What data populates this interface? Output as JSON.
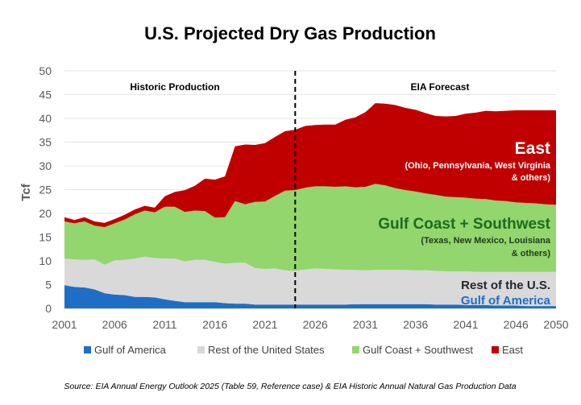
{
  "chart_data": {
    "type": "area",
    "title": "U.S. Projected Dry Gas Production",
    "ylabel": "Tcf",
    "xlabel": "",
    "ylim": [
      0,
      50
    ],
    "yticks": [
      0,
      5,
      10,
      15,
      20,
      25,
      30,
      35,
      40,
      45,
      50
    ],
    "xlim": [
      2001,
      2050
    ],
    "xticks": [
      2001,
      2006,
      2011,
      2016,
      2021,
      2026,
      2031,
      2036,
      2041,
      2046,
      2050
    ],
    "x": [
      2001,
      2002,
      2003,
      2004,
      2005,
      2006,
      2007,
      2008,
      2009,
      2010,
      2011,
      2012,
      2013,
      2014,
      2015,
      2016,
      2017,
      2018,
      2019,
      2020,
      2021,
      2022,
      2023,
      2024,
      2025,
      2026,
      2027,
      2028,
      2029,
      2030,
      2031,
      2032,
      2033,
      2034,
      2035,
      2036,
      2037,
      2038,
      2039,
      2040,
      2041,
      2042,
      2043,
      2044,
      2045,
      2046,
      2047,
      2048,
      2049,
      2050
    ],
    "series": [
      {
        "name": "Gulf of America",
        "color": "#1f6ec5",
        "values": [
          4.9,
          4.5,
          4.4,
          4.0,
          3.2,
          2.9,
          2.8,
          2.4,
          2.4,
          2.3,
          1.9,
          1.6,
          1.3,
          1.3,
          1.3,
          1.3,
          1.1,
          1.0,
          1.0,
          0.8,
          0.8,
          0.8,
          0.8,
          0.8,
          0.8,
          0.8,
          0.8,
          0.8,
          0.8,
          0.9,
          0.9,
          0.9,
          0.9,
          0.9,
          0.9,
          0.9,
          0.9,
          0.8,
          0.8,
          0.8,
          0.7,
          0.7,
          0.7,
          0.6,
          0.6,
          0.6,
          0.5,
          0.5,
          0.5,
          0.5
        ]
      },
      {
        "name": "Rest of the United States",
        "color": "#d9d9d9",
        "values": [
          5.6,
          5.8,
          5.8,
          6.3,
          6.0,
          7.2,
          7.4,
          8.1,
          8.5,
          8.3,
          8.6,
          8.9,
          8.6,
          8.9,
          8.9,
          8.5,
          8.3,
          8.6,
          8.6,
          7.7,
          7.5,
          7.6,
          7.2,
          7.1,
          7.4,
          7.6,
          7.5,
          7.4,
          7.3,
          7.2,
          7.1,
          7.2,
          7.2,
          7.2,
          7.2,
          7.1,
          7.1,
          7.1,
          7.0,
          7.0,
          7.1,
          7.0,
          7.0,
          7.1,
          7.1,
          7.1,
          7.2,
          7.2,
          7.2,
          7.2
        ]
      },
      {
        "name": "Gulf Coast + Southwest",
        "color": "#92d66d",
        "values": [
          7.8,
          7.6,
          8.1,
          7.1,
          7.9,
          7.8,
          8.5,
          9.3,
          9.7,
          9.6,
          10.9,
          10.9,
          10.4,
          10.4,
          10.3,
          9.3,
          9.8,
          13.0,
          12.3,
          13.9,
          14.2,
          15.3,
          16.8,
          17.0,
          17.2,
          17.3,
          17.4,
          17.4,
          17.6,
          17.4,
          17.6,
          18.1,
          17.8,
          17.2,
          16.8,
          16.6,
          16.2,
          16.0,
          15.7,
          15.6,
          15.5,
          15.4,
          15.3,
          15.0,
          14.9,
          14.6,
          14.5,
          14.4,
          14.2,
          14.1
        ]
      },
      {
        "name": "East",
        "color": "#c00000",
        "values": [
          0.9,
          0.7,
          0.9,
          0.9,
          0.9,
          0.9,
          1.0,
          1.0,
          1.0,
          1.0,
          2.2,
          3.1,
          4.6,
          5.2,
          6.8,
          8.0,
          8.6,
          11.5,
          12.6,
          12.0,
          12.3,
          12.4,
          12.5,
          12.7,
          13.0,
          12.9,
          13.0,
          13.1,
          14.0,
          14.7,
          15.7,
          17.0,
          17.2,
          17.5,
          17.3,
          17.2,
          16.9,
          16.6,
          16.9,
          17.1,
          17.7,
          18.1,
          18.6,
          18.8,
          19.0,
          19.4,
          19.5,
          19.6,
          19.8,
          19.9
        ]
      }
    ],
    "divider_year": 2024,
    "period_labels": {
      "historic": "Historic Production",
      "forecast": "EIA Forecast"
    },
    "annotations": {
      "east": {
        "name": "East",
        "detail1": "(Ohio, Pennsylvania, West Virginia",
        "detail2": "& others)"
      },
      "gulf_coast": {
        "name": "Gulf Coast + Southwest",
        "detail1": "(Texas, New Mexico, Louisiana",
        "detail2": "& others)"
      },
      "rest": {
        "name": "Rest of the U.S."
      },
      "gulf_america": {
        "name": "Gulf of America"
      }
    },
    "legend": [
      {
        "label": "Gulf of America",
        "color": "#1f6ec5"
      },
      {
        "label": "Rest of the United States",
        "color": "#d9d9d9"
      },
      {
        "label": "Gulf Coast + Southwest",
        "color": "#92d66d"
      },
      {
        "label": "East",
        "color": "#c00000"
      }
    ],
    "source": "Source: EIA Annual Energy Outlook 2025 (Table 59, Reference case) & EIA Historic Annual Natural Gas Production Data"
  }
}
